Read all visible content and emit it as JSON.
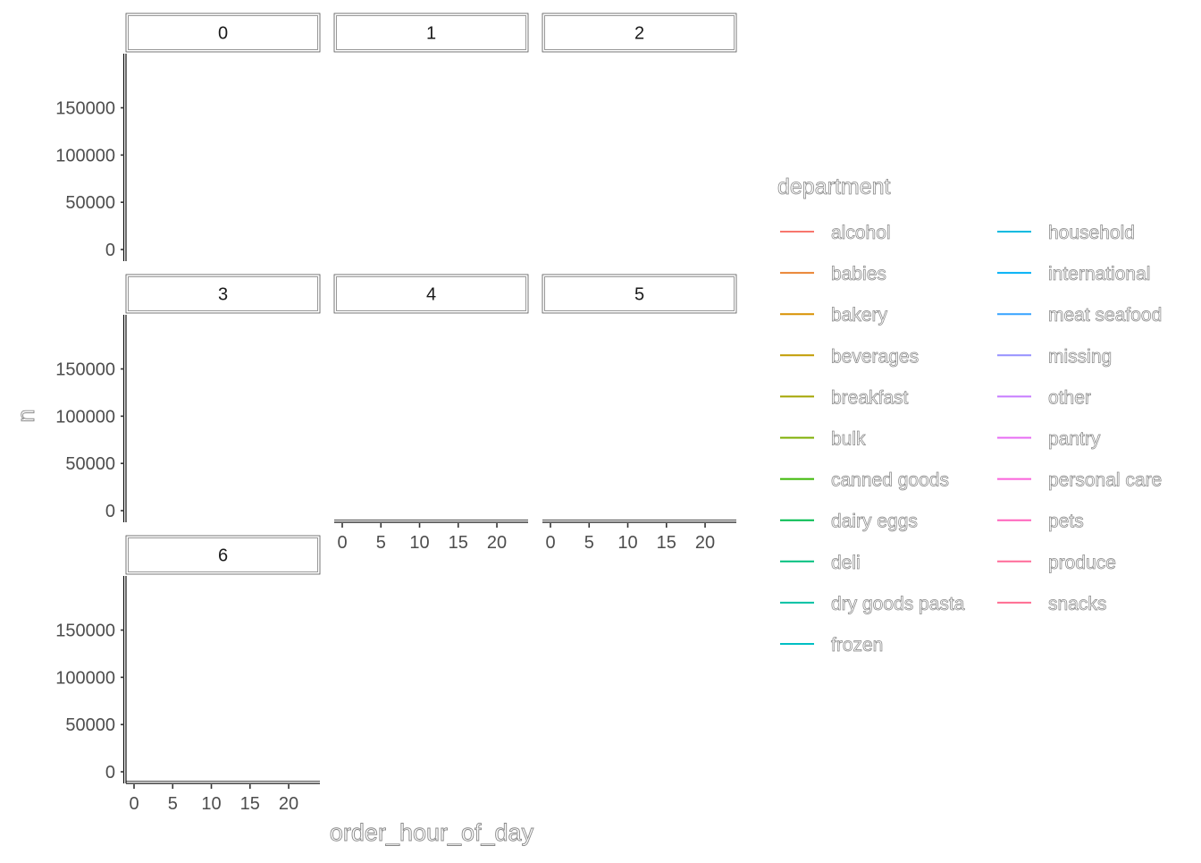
{
  "chart_data": {
    "type": "line",
    "facet_variable": "order_dow",
    "facets": [
      "0",
      "1",
      "2",
      "3",
      "4",
      "5",
      "6"
    ],
    "xlabel": "order_hour_of_day",
    "ylabel": "n",
    "x_ticks": [
      "0",
      "5",
      "10",
      "15",
      "20"
    ],
    "y_ticks": [
      "0",
      "50000",
      "100000",
      "150000"
    ],
    "xlim": [
      0,
      23
    ],
    "ylim": [
      0,
      195000
    ],
    "grid": false,
    "legend": {
      "title": "department",
      "position": "right",
      "columns": 2,
      "entries": [
        {
          "label": "alcohol",
          "color": "#F8766D"
        },
        {
          "label": "babies",
          "color": "#EA8331"
        },
        {
          "label": "bakery",
          "color": "#D89000"
        },
        {
          "label": "beverages",
          "color": "#C09B00"
        },
        {
          "label": "breakfast",
          "color": "#A3A500"
        },
        {
          "label": "bulk",
          "color": "#7CAE00"
        },
        {
          "label": "canned goods",
          "color": "#39B600"
        },
        {
          "label": "dairy eggs",
          "color": "#00BB4E"
        },
        {
          "label": "deli",
          "color": "#00BF7D"
        },
        {
          "label": "dry goods pasta",
          "color": "#00C1A3"
        },
        {
          "label": "frozen",
          "color": "#00BFC4"
        },
        {
          "label": "household",
          "color": "#00BAE0"
        },
        {
          "label": "international",
          "color": "#00B0F6"
        },
        {
          "label": "meat seafood",
          "color": "#35A2FF"
        },
        {
          "label": "missing",
          "color": "#9590FF"
        },
        {
          "label": "other",
          "color": "#C77CFF"
        },
        {
          "label": "pantry",
          "color": "#E76BF3"
        },
        {
          "label": "personal care",
          "color": "#FA62DB"
        },
        {
          "label": "pets",
          "color": "#FF62BC"
        },
        {
          "label": "produce",
          "color": "#FF6A98"
        },
        {
          "label": "snacks",
          "color": "#FF6C91"
        }
      ]
    },
    "series": []
  }
}
